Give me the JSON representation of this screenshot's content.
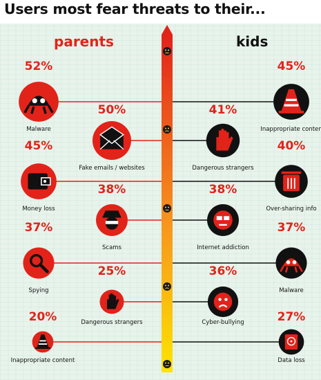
{
  "title": "Users most fear threats to their...",
  "columns": {
    "parents": "parents",
    "kids": "kids"
  },
  "colors": {
    "parents_accent": "#e2231a",
    "kids_accent": "#111111",
    "scale_top": "#e2231a",
    "scale_mid": "#f7931e",
    "scale_bottom": "#fde400"
  },
  "chart_data": {
    "type": "bar",
    "title": "Users most fear threats to their...",
    "series": [
      {
        "name": "parents",
        "items": [
          {
            "label": "Malware",
            "value": 52,
            "icon": "malware-bug-icon"
          },
          {
            "label": "Fake emails / websites",
            "value": 50,
            "icon": "envelope-icon"
          },
          {
            "label": "Money loss",
            "value": 45,
            "icon": "wallet-icon"
          },
          {
            "label": "Scams",
            "value": 38,
            "icon": "scam-disguise-icon"
          },
          {
            "label": "Spying",
            "value": 37,
            "icon": "magnifier-icon"
          },
          {
            "label": "Dangerous strangers",
            "value": 25,
            "icon": "stop-hand-icon"
          },
          {
            "label": "Inappropriate content",
            "value": 20,
            "icon": "cone-icon"
          }
        ]
      },
      {
        "name": "kids",
        "items": [
          {
            "label": "Inappropriate conten",
            "value": 45,
            "icon": "cone-icon"
          },
          {
            "label": "Dangerous strangers",
            "value": 41,
            "icon": "stop-hand-icon"
          },
          {
            "label": "Over-sharing info",
            "value": 40,
            "icon": "trash-bin-icon"
          },
          {
            "label": "Internet addiction",
            "value": 38,
            "icon": "addicted-face-icon"
          },
          {
            "label": "Malware",
            "value": 37,
            "icon": "malware-bug-icon"
          },
          {
            "label": "Cyber-bullying",
            "value": 36,
            "icon": "crying-face-icon"
          },
          {
            "label": "Data loss",
            "value": 27,
            "icon": "hard-drive-icon"
          }
        ]
      }
    ],
    "scale_faces": [
      "worried-face-icon",
      "sad-face-icon",
      "grimace-face-icon",
      "uneasy-face-icon",
      "neutral-face-icon"
    ]
  }
}
